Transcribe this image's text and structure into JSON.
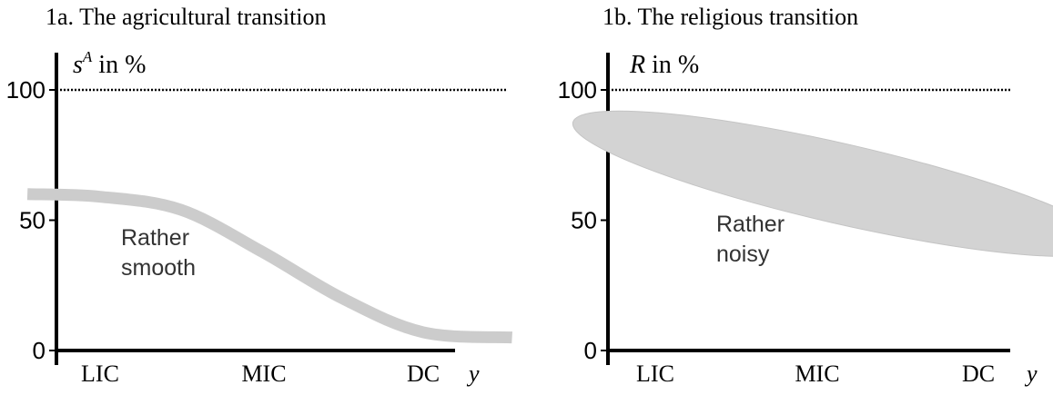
{
  "chart_data": [
    {
      "type": "line",
      "title": "1a. The agricultural transition",
      "ylabel_var": "s",
      "ylabel_sup": "A",
      "ylabel_rest": " in %",
      "xlabel": "y",
      "categories": [
        "LIC",
        "MIC",
        "DC"
      ],
      "yticks": [
        0,
        50,
        100
      ],
      "ylim": [
        0,
        110
      ],
      "reference_line": 100,
      "series": [
        {
          "x": [
            0.55,
            1.0,
            1.5,
            2.0,
            2.5,
            3.0,
            3.55
          ],
          "y": [
            60,
            59,
            54,
            38,
            20,
            7,
            5
          ]
        }
      ],
      "annotation": [
        "Rather",
        "smooth"
      ],
      "line_color": "#cccccc"
    },
    {
      "type": "area",
      "title": "1b. The religious transition",
      "ylabel_var": "R",
      "ylabel_rest": " in %",
      "xlabel": "y",
      "categories": [
        "LIC",
        "MIC",
        "DC"
      ],
      "yticks": [
        0,
        50,
        100
      ],
      "ylim": [
        0,
        110
      ],
      "reference_line": 100,
      "region": {
        "x_from": 0.6,
        "x_to": 3.7,
        "y_high": 86,
        "y_low": 42
      },
      "annotation": [
        "Rather",
        "noisy"
      ],
      "fill_color": "#d3d3d3"
    }
  ]
}
